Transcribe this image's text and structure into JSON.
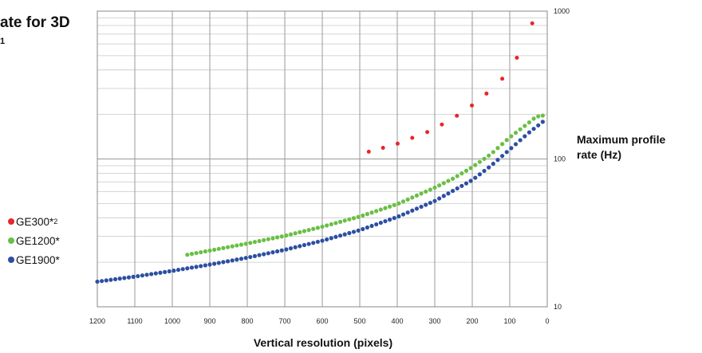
{
  "chart_data": {
    "type": "scatter",
    "title": "ate for 3D",
    "title_superscript": "1",
    "xlabel": "Vertical resolution (pixels)",
    "ylabel": [
      "Maximum profile",
      "rate (Hz)"
    ],
    "x_reversed": true,
    "xlim": [
      1200,
      0
    ],
    "y_scale": "log",
    "ylim": [
      10,
      1000
    ],
    "x_ticks": [
      "1200",
      "1100",
      "1000",
      "900",
      "800",
      "700",
      "600",
      "500",
      "400",
      "300",
      "200",
      "100",
      "0"
    ],
    "y_ticks": [
      "1000",
      "100",
      "10"
    ],
    "legend": "left",
    "grid": true,
    "series": [
      {
        "name": "GE300*",
        "name_sup": "2",
        "color": "#e8262c",
        "points": [
          [
            476,
            112
          ],
          [
            438,
            119
          ],
          [
            399,
            127
          ],
          [
            360,
            139
          ],
          [
            320,
            152
          ],
          [
            281,
            171
          ],
          [
            241,
            196
          ],
          [
            201,
            230
          ],
          [
            162,
            277
          ],
          [
            120,
            349
          ],
          [
            81,
            484
          ],
          [
            40,
            828
          ]
        ]
      },
      {
        "name": "GE1200*",
        "name_sup": "",
        "color": "#6abf45",
        "points": [
          [
            960,
            22.5
          ],
          [
            900,
            24.0
          ],
          [
            800,
            26.8
          ],
          [
            700,
            30.2
          ],
          [
            600,
            34.8
          ],
          [
            500,
            40.8
          ],
          [
            400,
            49.5
          ],
          [
            300,
            64.0
          ],
          [
            250,
            74.0
          ],
          [
            200,
            88.0
          ],
          [
            150,
            108
          ],
          [
            100,
            140
          ],
          [
            50,
            175
          ],
          [
            30,
            193
          ],
          [
            5,
            198
          ]
        ]
      },
      {
        "name": "GE1900*",
        "name_sup": "",
        "color": "#2c4fa2",
        "points": [
          [
            1200,
            14.8
          ],
          [
            1100,
            16.0
          ],
          [
            1000,
            17.5
          ],
          [
            900,
            19.3
          ],
          [
            800,
            21.5
          ],
          [
            700,
            24.3
          ],
          [
            600,
            28.0
          ],
          [
            500,
            33.0
          ],
          [
            400,
            40.5
          ],
          [
            300,
            52.0
          ],
          [
            200,
            72.0
          ],
          [
            150,
            90.0
          ],
          [
            100,
            116
          ],
          [
            50,
            150
          ],
          [
            10,
            180
          ],
          [
            3,
            183
          ]
        ]
      }
    ]
  }
}
